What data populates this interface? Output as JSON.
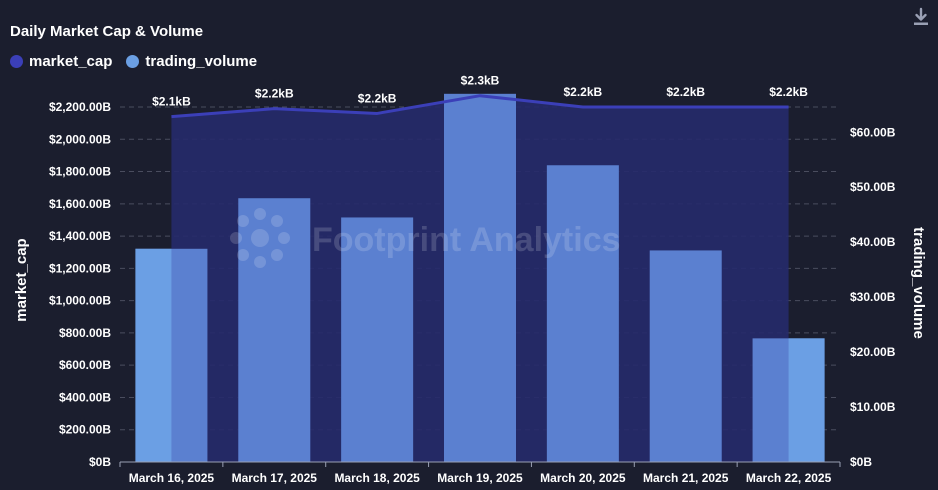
{
  "header": {
    "title": "Daily Market Cap & Volume"
  },
  "icons": {
    "download": "download-icon",
    "watermark_logo": "footprint-logo-icon"
  },
  "watermark": {
    "text": "Footprint Analytics"
  },
  "colors": {
    "background": "#1b1e2e",
    "market_cap": "#3b3fb8",
    "market_cap_area": "#262a6b",
    "trading_volume": "#6b9fe4",
    "trading_volume_dark": "#5b80d0",
    "grid": "#4a4d5e"
  },
  "chart_data": {
    "type": "bar",
    "categories": [
      "March 16, 2025",
      "March 17, 2025",
      "March 18, 2025",
      "March 19, 2025",
      "March 20, 2025",
      "March 21, 2025",
      "March 22, 2025"
    ],
    "series": [
      {
        "name": "market_cap",
        "render": "line-area",
        "axis": "left",
        "values": [
          2140,
          2190,
          2160,
          2270,
          2200,
          2200,
          2200
        ],
        "labels": [
          "$2.1kB",
          "$2.2kB",
          "$2.2kB",
          "$2.3kB",
          "$2.2kB",
          "$2.2kB",
          "$2.2kB"
        ]
      },
      {
        "name": "trading_volume",
        "render": "bar",
        "axis": "right",
        "values": [
          38.8,
          48.0,
          44.5,
          67.0,
          54.0,
          38.5,
          22.5
        ]
      }
    ],
    "y_left": {
      "label": "market_cap",
      "ylim": [
        0,
        2200
      ],
      "ticks": [
        0,
        200,
        400,
        600,
        800,
        1000,
        1200,
        1400,
        1600,
        1800,
        2000,
        2200
      ],
      "tick_labels": [
        "$0B",
        "$200.00B",
        "$400.00B",
        "$600.00B",
        "$800.00B",
        "$1,000.00B",
        "$1,200.00B",
        "$1,400.00B",
        "$1,600.00B",
        "$1,800.00B",
        "$2,000.00B",
        "$2,200.00B"
      ]
    },
    "y_right": {
      "label": "trading_volume",
      "ylim": [
        0,
        65
      ],
      "ticks": [
        0,
        10,
        20,
        30,
        40,
        50,
        60
      ],
      "tick_labels": [
        "$0B",
        "$10.00B",
        "$20.00B",
        "$30.00B",
        "$40.00B",
        "$50.00B",
        "$60.00B"
      ]
    },
    "grid": true,
    "legend": "top-left"
  }
}
